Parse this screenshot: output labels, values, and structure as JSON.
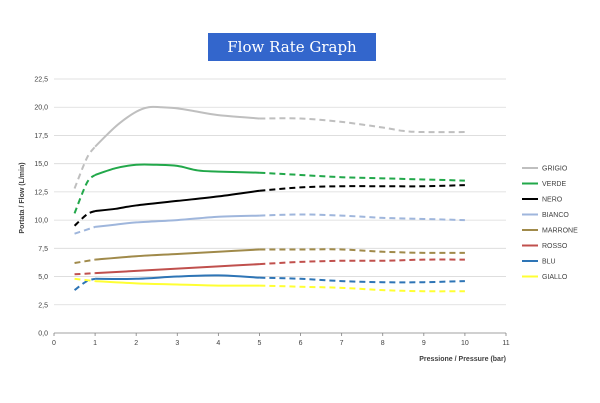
{
  "chart_data": {
    "type": "line",
    "title": "Flow Rate Graph",
    "xlabel": "Pressione / Pressure (bar)",
    "ylabel": "Portata / Flow (L/min)",
    "xlim": [
      0,
      11
    ],
    "ylim": [
      0,
      22.5
    ],
    "xticks": [
      0,
      1,
      2,
      3,
      4,
      5,
      6,
      7,
      8,
      9,
      10,
      11
    ],
    "yticks": [
      "0,0",
      "2,5",
      "5,0",
      "7,5",
      "10,0",
      "12,5",
      "15,0",
      "17,5",
      "20,0",
      "22,5"
    ],
    "grid": "horizontal",
    "legend": "right",
    "series": [
      {
        "name": "GRIGIO",
        "color": "#bfbfbf",
        "x": [
          0.5,
          0.8,
          1,
          1.3,
          1.6,
          2,
          2.3,
          2.6,
          3,
          3.5,
          4,
          5,
          6,
          7,
          8,
          8.5,
          9,
          10
        ],
        "y": [
          12.8,
          15.5,
          16.5,
          17.6,
          18.6,
          19.6,
          20.0,
          20.0,
          19.9,
          19.6,
          19.3,
          19.0,
          19.0,
          18.7,
          18.2,
          17.9,
          17.8,
          17.8
        ]
      },
      {
        "name": "VERDE",
        "color": "#22a84a",
        "x": [
          0.5,
          0.8,
          1,
          1.5,
          2,
          2.5,
          3,
          3.5,
          4,
          5,
          6,
          7,
          8,
          9,
          10
        ],
        "y": [
          10.6,
          13.3,
          14.0,
          14.6,
          14.9,
          14.9,
          14.8,
          14.4,
          14.3,
          14.2,
          14.0,
          13.8,
          13.7,
          13.6,
          13.5
        ]
      },
      {
        "name": "NERO",
        "color": "#000000",
        "x": [
          0.5,
          0.8,
          1,
          1.5,
          2,
          3,
          4,
          5,
          6,
          7,
          8,
          9,
          10
        ],
        "y": [
          9.5,
          10.5,
          10.8,
          11.0,
          11.3,
          11.7,
          12.1,
          12.6,
          12.9,
          13.0,
          13.0,
          13.0,
          13.1
        ]
      },
      {
        "name": "BIANCO",
        "color": "#9fb6dc",
        "x": [
          0.5,
          1,
          1.5,
          2,
          3,
          4,
          5,
          6,
          7,
          8,
          9,
          10
        ],
        "y": [
          8.8,
          9.4,
          9.6,
          9.8,
          10.0,
          10.3,
          10.4,
          10.5,
          10.4,
          10.2,
          10.1,
          10.0
        ]
      },
      {
        "name": "MARRONE",
        "color": "#a08a4a",
        "x": [
          0.5,
          1,
          2,
          3,
          4,
          5,
          6,
          7,
          8,
          9,
          10
        ],
        "y": [
          6.2,
          6.5,
          6.8,
          7.0,
          7.2,
          7.4,
          7.4,
          7.4,
          7.2,
          7.1,
          7.1
        ]
      },
      {
        "name": "ROSSO",
        "color": "#c0504d",
        "x": [
          0.5,
          1,
          2,
          3,
          4,
          5,
          6,
          7,
          8,
          9,
          10
        ],
        "y": [
          5.2,
          5.3,
          5.5,
          5.7,
          5.9,
          6.1,
          6.3,
          6.4,
          6.4,
          6.5,
          6.5
        ]
      },
      {
        "name": "BLU",
        "color": "#2e75b6",
        "x": [
          0.5,
          0.8,
          1,
          2,
          3,
          4,
          5,
          6,
          7,
          8,
          9,
          10
        ],
        "y": [
          3.8,
          4.6,
          4.8,
          4.8,
          5.0,
          5.1,
          4.9,
          4.8,
          4.6,
          4.5,
          4.5,
          4.6
        ]
      },
      {
        "name": "GIALLO",
        "color": "#ffff33",
        "x": [
          0.5,
          1,
          2,
          3,
          4,
          5,
          6,
          7,
          8,
          9,
          10
        ],
        "y": [
          4.8,
          4.6,
          4.4,
          4.3,
          4.2,
          4.2,
          4.1,
          4.0,
          3.8,
          3.7,
          3.7
        ]
      }
    ]
  }
}
